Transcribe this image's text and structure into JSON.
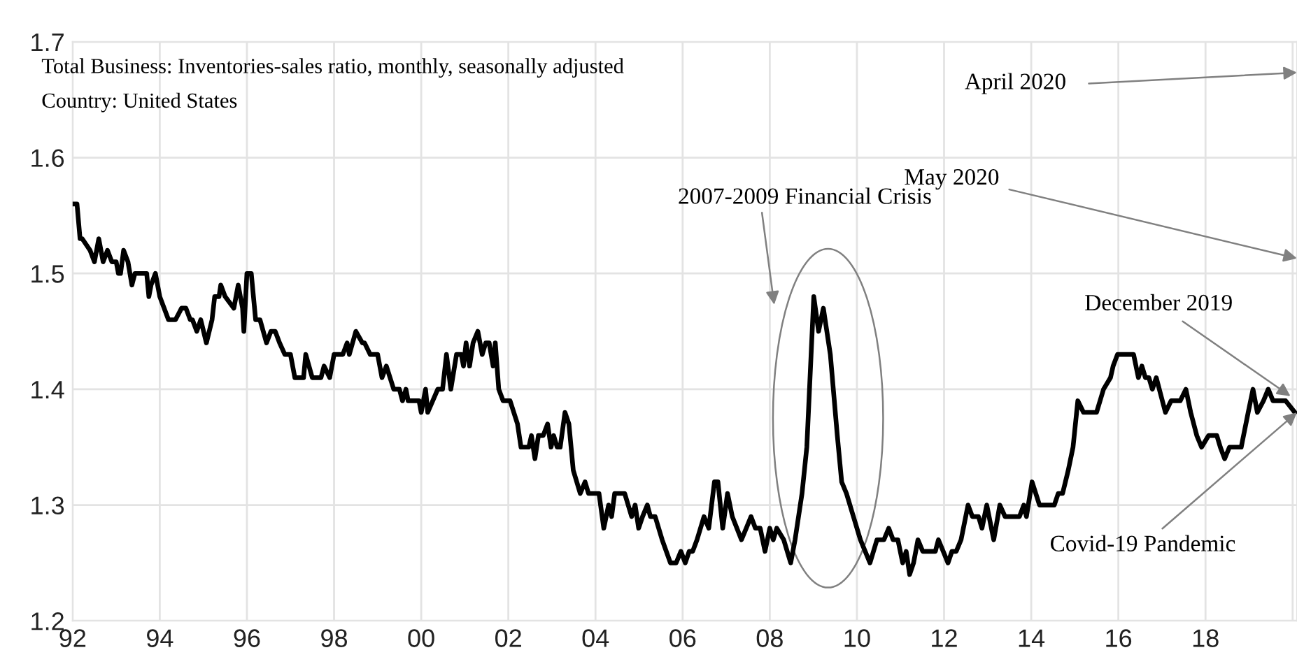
{
  "chart_data": {
    "type": "line",
    "title": "Total Business: Inventories-sales ratio, monthly, seasonally adjusted",
    "subtitle": "Country: United States",
    "series": [
      {
        "color": "#000000",
        "x": [
          1992.0,
          1992.1,
          1992.17,
          1992.22,
          1992.4,
          1992.5,
          1992.6,
          1992.7,
          1992.8,
          1992.9,
          1993.0,
          1993.05,
          1993.1,
          1993.17,
          1993.27,
          1993.36,
          1993.43,
          1993.7,
          1993.75,
          1993.8,
          1993.9,
          1994.0,
          1994.2,
          1994.36,
          1994.5,
          1994.6,
          1994.7,
          1994.75,
          1994.85,
          1994.94,
          1995.07,
          1995.2,
          1995.26,
          1995.36,
          1995.4,
          1995.5,
          1995.7,
          1995.8,
          1995.9,
          1995.93,
          1996.0,
          1996.1,
          1996.2,
          1996.3,
          1996.45,
          1996.55,
          1996.65,
          1996.75,
          1996.87,
          1997.0,
          1997.1,
          1997.3,
          1997.35,
          1997.5,
          1997.7,
          1997.77,
          1997.9,
          1998.0,
          1998.2,
          1998.3,
          1998.35,
          1998.5,
          1998.65,
          1998.7,
          1998.83,
          1999.0,
          1999.1,
          1999.2,
          1999.37,
          1999.5,
          1999.57,
          1999.65,
          1999.7,
          1999.95,
          2000.0,
          2000.1,
          2000.15,
          2000.38,
          2000.49,
          2000.58,
          2000.68,
          2000.81,
          2000.92,
          2000.97,
          2001.03,
          2001.11,
          2001.19,
          2001.3,
          2001.4,
          2001.48,
          2001.56,
          2001.65,
          2001.7,
          2001.78,
          2001.88,
          2002.04,
          2002.21,
          2002.29,
          2002.47,
          2002.53,
          2002.61,
          2002.69,
          2002.8,
          2002.9,
          2002.98,
          2003.04,
          2003.12,
          2003.19,
          2003.3,
          2003.39,
          2003.49,
          2003.65,
          2003.76,
          2003.84,
          2004.08,
          2004.19,
          2004.3,
          2004.37,
          2004.44,
          2004.59,
          2004.67,
          2004.83,
          2004.91,
          2004.99,
          2005.08,
          2005.19,
          2005.26,
          2005.37,
          2005.53,
          2005.72,
          2005.85,
          2005.96,
          2006.06,
          2006.15,
          2006.23,
          2006.33,
          2006.49,
          2006.6,
          2006.73,
          2006.81,
          2006.92,
          2007.03,
          2007.14,
          2007.35,
          2007.46,
          2007.57,
          2007.67,
          2007.78,
          2007.89,
          2008.0,
          2008.08,
          2008.16,
          2008.32,
          2008.48,
          2008.58,
          2008.74,
          2008.85,
          2009.01,
          2009.12,
          2009.23,
          2009.39,
          2009.55,
          2009.65,
          2009.76,
          2009.92,
          2010.08,
          2010.3,
          2010.46,
          2010.62,
          2010.73,
          2010.83,
          2010.94,
          2011.05,
          2011.13,
          2011.21,
          2011.3,
          2011.4,
          2011.51,
          2011.8,
          2011.87,
          2011.98,
          2012.09,
          2012.18,
          2012.28,
          2012.39,
          2012.55,
          2012.65,
          2012.79,
          2012.87,
          2012.98,
          2013.14,
          2013.28,
          2013.4,
          2013.73,
          2013.83,
          2013.89,
          2014.02,
          2014.19,
          2014.53,
          2014.62,
          2014.72,
          2014.85,
          2014.96,
          2015.07,
          2015.2,
          2015.5,
          2015.66,
          2015.82,
          2015.88,
          2015.98,
          2016.35,
          2016.46,
          2016.54,
          2016.62,
          2016.7,
          2016.78,
          2016.87,
          2016.94,
          2017.08,
          2017.21,
          2017.42,
          2017.55,
          2017.66,
          2017.8,
          2017.91,
          2018.07,
          2018.26,
          2018.34,
          2018.44,
          2018.55,
          2018.82,
          2018.98,
          2019.09,
          2019.19,
          2019.33,
          2019.44,
          2019.55,
          2019.84,
          2020.05
        ],
        "values": [
          1.56,
          1.56,
          1.53,
          1.53,
          1.52,
          1.51,
          1.53,
          1.51,
          1.52,
          1.51,
          1.51,
          1.5,
          1.5,
          1.52,
          1.51,
          1.49,
          1.5,
          1.5,
          1.48,
          1.49,
          1.5,
          1.48,
          1.46,
          1.46,
          1.47,
          1.47,
          1.46,
          1.46,
          1.45,
          1.46,
          1.44,
          1.46,
          1.48,
          1.48,
          1.49,
          1.48,
          1.47,
          1.49,
          1.47,
          1.45,
          1.5,
          1.5,
          1.46,
          1.46,
          1.44,
          1.45,
          1.45,
          1.44,
          1.43,
          1.43,
          1.41,
          1.41,
          1.43,
          1.41,
          1.41,
          1.42,
          1.41,
          1.43,
          1.43,
          1.44,
          1.43,
          1.45,
          1.44,
          1.44,
          1.43,
          1.43,
          1.41,
          1.42,
          1.4,
          1.4,
          1.39,
          1.4,
          1.39,
          1.39,
          1.38,
          1.4,
          1.38,
          1.4,
          1.4,
          1.43,
          1.4,
          1.43,
          1.43,
          1.42,
          1.44,
          1.42,
          1.44,
          1.45,
          1.43,
          1.44,
          1.44,
          1.42,
          1.44,
          1.4,
          1.39,
          1.39,
          1.37,
          1.35,
          1.35,
          1.36,
          1.34,
          1.36,
          1.36,
          1.37,
          1.35,
          1.36,
          1.35,
          1.35,
          1.38,
          1.37,
          1.33,
          1.31,
          1.32,
          1.31,
          1.31,
          1.28,
          1.3,
          1.29,
          1.31,
          1.31,
          1.31,
          1.29,
          1.3,
          1.28,
          1.29,
          1.3,
          1.29,
          1.29,
          1.27,
          1.25,
          1.25,
          1.26,
          1.25,
          1.26,
          1.26,
          1.27,
          1.29,
          1.28,
          1.32,
          1.32,
          1.28,
          1.31,
          1.29,
          1.27,
          1.28,
          1.29,
          1.28,
          1.28,
          1.26,
          1.28,
          1.27,
          1.28,
          1.27,
          1.25,
          1.27,
          1.31,
          1.35,
          1.48,
          1.45,
          1.47,
          1.43,
          1.36,
          1.32,
          1.31,
          1.29,
          1.27,
          1.25,
          1.27,
          1.27,
          1.28,
          1.27,
          1.27,
          1.25,
          1.26,
          1.24,
          1.25,
          1.27,
          1.26,
          1.26,
          1.27,
          1.26,
          1.25,
          1.26,
          1.26,
          1.27,
          1.3,
          1.29,
          1.29,
          1.28,
          1.3,
          1.27,
          1.3,
          1.29,
          1.29,
          1.3,
          1.29,
          1.32,
          1.3,
          1.3,
          1.31,
          1.31,
          1.33,
          1.35,
          1.39,
          1.38,
          1.38,
          1.4,
          1.41,
          1.42,
          1.43,
          1.43,
          1.41,
          1.42,
          1.41,
          1.41,
          1.4,
          1.41,
          1.4,
          1.38,
          1.39,
          1.39,
          1.4,
          1.38,
          1.36,
          1.35,
          1.36,
          1.36,
          1.35,
          1.34,
          1.35,
          1.35,
          1.38,
          1.4,
          1.38,
          1.39,
          1.4,
          1.39,
          1.39,
          1.38
        ]
      }
    ],
    "xlim": [
      1992.0,
      2020.1
    ],
    "xticks": [
      {
        "value": 1992,
        "label": "92"
      },
      {
        "value": 1994,
        "label": "94"
      },
      {
        "value": 1996,
        "label": "96"
      },
      {
        "value": 1998,
        "label": "98"
      },
      {
        "value": 2000,
        "label": "00"
      },
      {
        "value": 2002,
        "label": "02"
      },
      {
        "value": 2004,
        "label": "04"
      },
      {
        "value": 2006,
        "label": "06"
      },
      {
        "value": 2008,
        "label": "08"
      },
      {
        "value": 2010,
        "label": "10"
      },
      {
        "value": 2012,
        "label": "12"
      },
      {
        "value": 2014,
        "label": "14"
      },
      {
        "value": 2016,
        "label": "16"
      },
      {
        "value": 2018,
        "label": "18"
      },
      {
        "value": 2020,
        "label": null
      }
    ],
    "ylim": [
      1.2,
      1.7
    ],
    "yticks": [
      1.2,
      1.3,
      1.4,
      1.5,
      1.6,
      1.7
    ],
    "grid": true,
    "line_style": "solid",
    "annotations": [
      "2007-2009 Financial Crisis",
      "April 2020",
      "May 2020",
      {
        "text": "December 2019",
        "x": 2019.95,
        "y": 1.394
      },
      {
        "text": "Covid-19 Pandemic",
        "x": 2020.1,
        "y": 1.38
      }
    ]
  }
}
